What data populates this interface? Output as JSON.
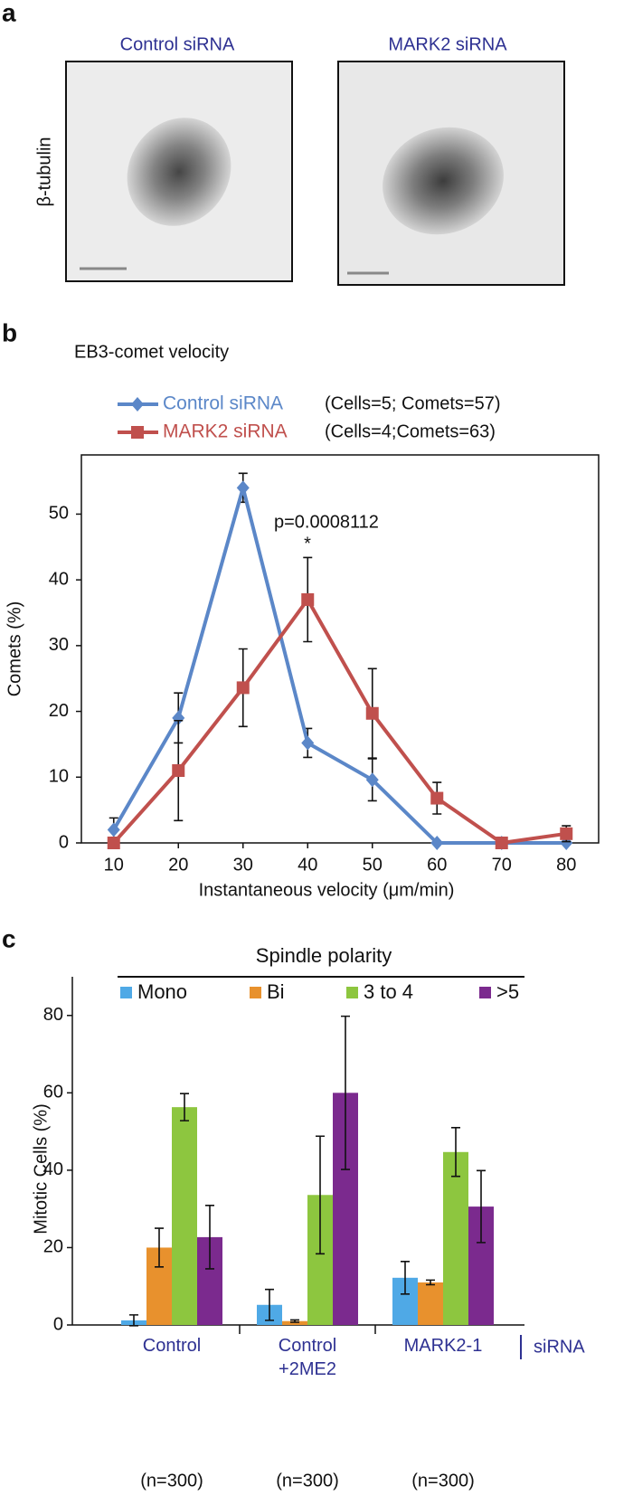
{
  "panel_a": {
    "panel_label": "a",
    "titles": [
      "Control siRNA",
      "MARK2 siRNA"
    ],
    "ylabel": "β-tubulin"
  },
  "chart_data": [
    {
      "type": "line",
      "panel_label": "b",
      "title": "EB3-comet velocity",
      "xlabel": "Instantaneous velocity (μm/min)",
      "ylabel": "Comets (%)",
      "x": [
        10,
        20,
        30,
        40,
        50,
        60,
        70,
        80
      ],
      "xlim": [
        5,
        85
      ],
      "xticks": [
        10,
        20,
        30,
        40,
        50,
        60,
        70,
        80
      ],
      "ylim": [
        0,
        59
      ],
      "yticks": [
        0,
        10,
        20,
        30,
        40,
        50
      ],
      "series": [
        {
          "name": "Control siRNA",
          "legend_note": "(Cells=5; Comets=57)",
          "color": "#5b87c8",
          "marker": "diamond",
          "values": [
            2,
            19,
            54,
            15.2,
            9.6,
            0,
            0,
            0
          ],
          "errors": [
            1.8,
            3.8,
            2.2,
            2.2,
            3.2,
            0,
            0,
            0
          ]
        },
        {
          "name": "MARK2 siRNA",
          "legend_note": "(Cells=4;Comets=63)",
          "color": "#c0504d",
          "marker": "square",
          "values": [
            0,
            11,
            23.6,
            37,
            19.7,
            6.8,
            0,
            1.4
          ],
          "errors": [
            0,
            7.6,
            5.9,
            6.4,
            6.8,
            2.4,
            0,
            1.2
          ]
        }
      ],
      "annotations": [
        "p=0.0008112",
        "*"
      ]
    },
    {
      "type": "bar",
      "panel_label": "c",
      "title": "Spindle polarity",
      "ylabel": "Mitotic Cells (%)",
      "categories": [
        "Control",
        "Control\n+2ME2",
        "MARK2-1"
      ],
      "category_notes": [
        "(n=300)",
        "(n=300)",
        "(n=300)"
      ],
      "axis_note": "siRNA",
      "ylim": [
        0,
        90
      ],
      "yticks": [
        0,
        20,
        40,
        60,
        80
      ],
      "series": [
        {
          "name": "Mono",
          "color": "#4fa9e6",
          "values": [
            1.2,
            5.2,
            12.2
          ],
          "errors": [
            1.4,
            4,
            4.2
          ]
        },
        {
          "name": "Bi",
          "color": "#e8912d",
          "values": [
            20,
            1,
            11
          ],
          "errors": [
            5,
            0.3,
            0.6
          ]
        },
        {
          "name": "3 to 4",
          "color": "#8dc63f",
          "values": [
            56.3,
            33.6,
            44.7
          ],
          "errors": [
            3.5,
            15.2,
            6.3
          ]
        },
        {
          "name": ">5",
          "color": "#7b2a8e",
          "values": [
            22.7,
            60,
            30.6
          ],
          "errors": [
            8.2,
            19.8,
            9.3
          ]
        }
      ]
    }
  ]
}
